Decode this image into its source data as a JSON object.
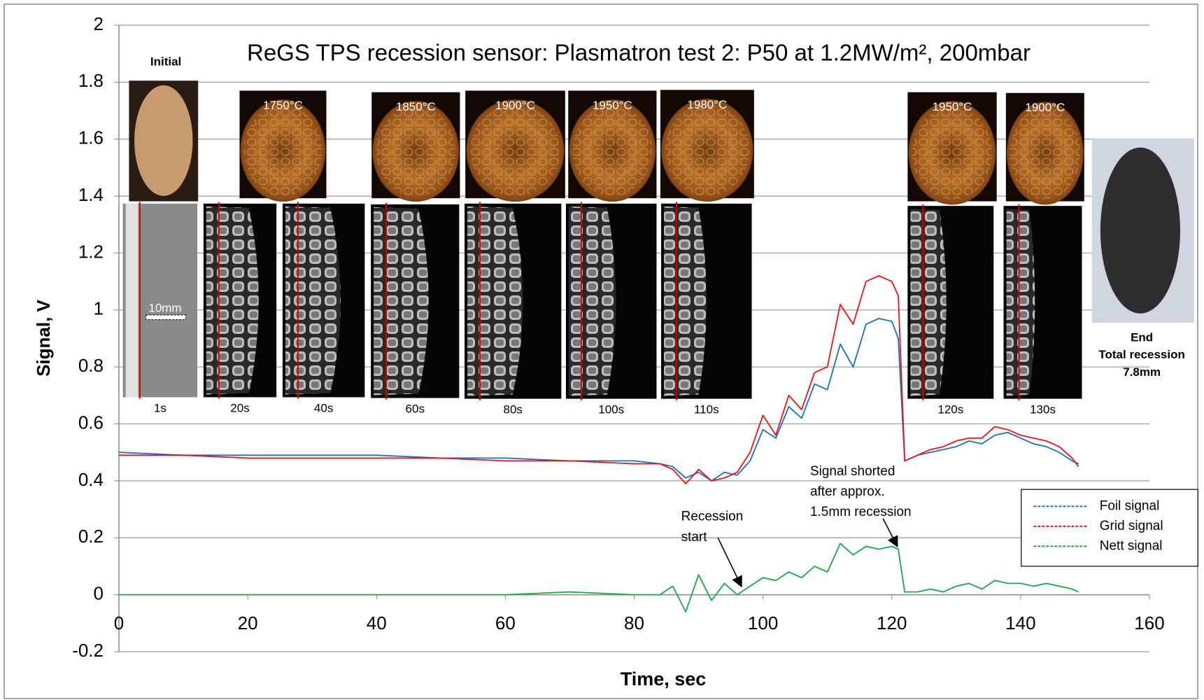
{
  "chart_data": {
    "type": "line",
    "title": "ReGS TPS recession sensor: Plasmatron test 2: P50 at 1.2MW/m², 200mbar",
    "x_label": "Time, sec",
    "y_label": "Signal, V",
    "xlim": [
      0,
      160
    ],
    "xticks": [
      0,
      20,
      40,
      60,
      80,
      100,
      120,
      140,
      160
    ],
    "ylim": [
      -0.2,
      2
    ],
    "yticks": [
      -0.2,
      0,
      0.2,
      0.4,
      0.6,
      0.8,
      1,
      1.2,
      1.4,
      1.6,
      1.8,
      2
    ],
    "grid": true,
    "legend": "right",
    "x": [
      0,
      10,
      20,
      30,
      40,
      50,
      60,
      70,
      80,
      84,
      86,
      88,
      90,
      92,
      94,
      96,
      98,
      100,
      102,
      104,
      106,
      108,
      110,
      112,
      114,
      116,
      118,
      120,
      121,
      122,
      124,
      126,
      128,
      130,
      132,
      134,
      136,
      138,
      140,
      142,
      144,
      146,
      148,
      149
    ],
    "series": [
      {
        "name": "Foil signal",
        "color": "#1f6fb4",
        "values": [
          0.5,
          0.49,
          0.49,
          0.49,
          0.49,
          0.48,
          0.48,
          0.47,
          0.47,
          0.46,
          0.45,
          0.41,
          0.43,
          0.4,
          0.43,
          0.42,
          0.47,
          0.58,
          0.55,
          0.66,
          0.62,
          0.74,
          0.72,
          0.88,
          0.8,
          0.95,
          0.97,
          0.96,
          0.9,
          0.47,
          0.49,
          0.5,
          0.51,
          0.52,
          0.54,
          0.53,
          0.56,
          0.57,
          0.55,
          0.53,
          0.52,
          0.5,
          0.47,
          0.46
        ]
      },
      {
        "name": "Grid signal",
        "color": "#e8141c",
        "values": [
          0.49,
          0.49,
          0.48,
          0.48,
          0.48,
          0.48,
          0.47,
          0.47,
          0.46,
          0.46,
          0.44,
          0.39,
          0.44,
          0.4,
          0.41,
          0.43,
          0.5,
          0.63,
          0.56,
          0.7,
          0.65,
          0.78,
          0.8,
          1.02,
          0.95,
          1.1,
          1.12,
          1.1,
          1.05,
          0.47,
          0.49,
          0.51,
          0.52,
          0.54,
          0.55,
          0.55,
          0.59,
          0.58,
          0.56,
          0.55,
          0.54,
          0.52,
          0.48,
          0.45
        ]
      },
      {
        "name": "Nett signal",
        "color": "#1aa64a",
        "values": [
          0,
          0,
          0,
          0,
          0,
          0,
          0,
          0.01,
          0,
          0,
          0.03,
          -0.06,
          0.07,
          -0.02,
          0.04,
          0,
          0.03,
          0.06,
          0.05,
          0.08,
          0.06,
          0.1,
          0.08,
          0.18,
          0.14,
          0.17,
          0.16,
          0.17,
          0.16,
          0.01,
          0.01,
          0.02,
          0.01,
          0.03,
          0.04,
          0.02,
          0.05,
          0.04,
          0.04,
          0.03,
          0.04,
          0.03,
          0.02,
          0.01
        ]
      }
    ],
    "annotations": [
      {
        "lines": [
          "Recession",
          "start"
        ]
      },
      {
        "lines": [
          "Signal shorted",
          "after approx.",
          "1.5mm recession"
        ]
      }
    ],
    "initial_label": "Initial",
    "scale_label": "10mm",
    "thermal_images": [
      "1750°C",
      "1850°C",
      "1900°C",
      "1950°C",
      "1980°C",
      "1950°C",
      "1900°C"
    ],
    "profile_images": [
      "1s",
      "20s",
      "40s",
      "60s",
      "80s",
      "100s",
      "110s",
      "120s",
      "130s"
    ],
    "end_label": [
      "End",
      "Total recession",
      "7.8mm"
    ]
  }
}
